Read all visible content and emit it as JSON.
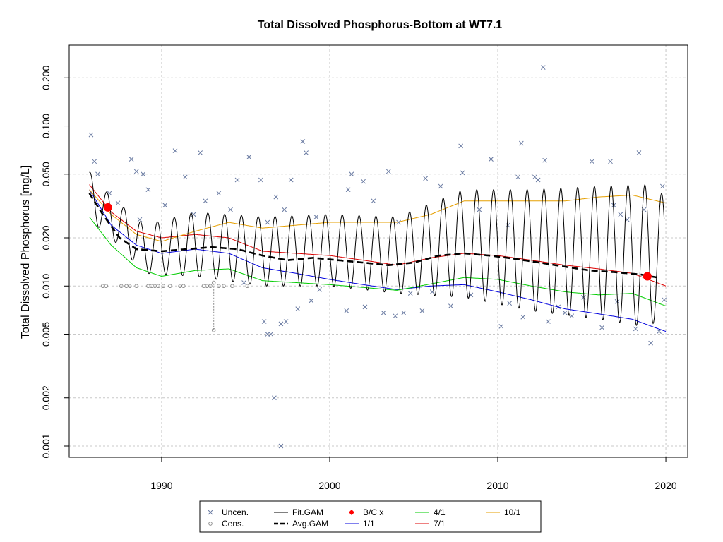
{
  "chart_data": {
    "type": "line",
    "title": "Total Dissolved Phosphorus-Bottom at WT7.1",
    "xlabel": "",
    "ylabel": "Total Dissolved Phosphorus [mg/L]",
    "y_scale": "log",
    "xlim": [
      1984.5,
      2021.3
    ],
    "ylim": [
      0.00085,
      0.32
    ],
    "grid": true,
    "x_ticks": [
      {
        "value": 1990,
        "label": "1990"
      },
      {
        "value": 2000,
        "label": "2000"
      },
      {
        "value": 2010,
        "label": "2010"
      },
      {
        "value": 2020,
        "label": "2020"
      }
    ],
    "y_ticks": [
      {
        "value": 0.001,
        "label": "0.001"
      },
      {
        "value": 0.002,
        "label": "0.002"
      },
      {
        "value": 0.005,
        "label": "0.005"
      },
      {
        "value": 0.01,
        "label": "0.010"
      },
      {
        "value": 0.02,
        "label": "0.020"
      },
      {
        "value": 0.05,
        "label": "0.050"
      },
      {
        "value": 0.1,
        "label": "0.100"
      },
      {
        "value": 0.2,
        "label": "0.200"
      }
    ],
    "fit_gam": {
      "name": "Fit.GAM",
      "color": "#000000",
      "cycle_peak_offset": 0.75,
      "control_points": [
        {
          "x": 1985.7,
          "hi": 0.052,
          "lo": 0.026
        },
        {
          "x": 1987.0,
          "hi": 0.036,
          "lo": 0.02
        },
        {
          "x": 1989.0,
          "hi": 0.024,
          "lo": 0.012
        },
        {
          "x": 1992.0,
          "hi": 0.029,
          "lo": 0.0115
        },
        {
          "x": 1996.0,
          "hi": 0.027,
          "lo": 0.01
        },
        {
          "x": 2000.0,
          "hi": 0.028,
          "lo": 0.01
        },
        {
          "x": 2004.0,
          "hi": 0.027,
          "lo": 0.009
        },
        {
          "x": 2008.0,
          "hi": 0.04,
          "lo": 0.0085
        },
        {
          "x": 2012.0,
          "hi": 0.04,
          "lo": 0.007
        },
        {
          "x": 2016.0,
          "hi": 0.042,
          "lo": 0.0062
        },
        {
          "x": 2019.0,
          "hi": 0.043,
          "lo": 0.0055
        },
        {
          "x": 2019.9,
          "hi": 0.037,
          "lo": 0.0068
        }
      ]
    },
    "series": [
      {
        "name": "Avg.GAM",
        "color": "#000000",
        "dashed": true,
        "x": [
          1985.7,
          1986.5,
          1987.5,
          1988.5,
          1990,
          1991.5,
          1993,
          1994.5,
          1996,
          1997.5,
          1999,
          2000.5,
          2002,
          2003.5,
          2005,
          2006.5,
          2008,
          2009.5,
          2011,
          2012.5,
          2014,
          2015.5,
          2017,
          2018.5,
          2019.5
        ],
        "values": [
          0.038,
          0.028,
          0.02,
          0.017,
          0.0165,
          0.017,
          0.0175,
          0.017,
          0.0155,
          0.0145,
          0.015,
          0.0145,
          0.014,
          0.0135,
          0.014,
          0.0155,
          0.016,
          0.0155,
          0.0148,
          0.014,
          0.0132,
          0.0125,
          0.0122,
          0.0118,
          0.0113
        ]
      },
      {
        "name": "1/1",
        "color": "#0000dd",
        "x": [
          1985.7,
          1987,
          1988.5,
          1990,
          1992,
          1994,
          1996,
          1998,
          2000,
          2002,
          2004,
          2006,
          2008,
          2010,
          2012,
          2014,
          2016,
          2018,
          2020
        ],
        "values": [
          0.04,
          0.024,
          0.018,
          0.016,
          0.017,
          0.016,
          0.013,
          0.012,
          0.011,
          0.0102,
          0.0095,
          0.01,
          0.0102,
          0.0092,
          0.0082,
          0.0072,
          0.0067,
          0.0062,
          0.0052
        ]
      },
      {
        "name": "4/1",
        "color": "#00cc00",
        "x": [
          1985.7,
          1987,
          1988.5,
          1990,
          1992,
          1994,
          1996,
          1998,
          2000,
          2002,
          2004,
          2006,
          2008,
          2010,
          2012,
          2014,
          2016,
          2018,
          2020
        ],
        "values": [
          0.027,
          0.018,
          0.013,
          0.0115,
          0.0125,
          0.0128,
          0.0108,
          0.0105,
          0.0102,
          0.0098,
          0.0094,
          0.0103,
          0.0113,
          0.011,
          0.01,
          0.0092,
          0.0088,
          0.009,
          0.0075
        ]
      },
      {
        "name": "7/1",
        "color": "#dd0000",
        "x": [
          1985.7,
          1987,
          1988.5,
          1990,
          1992,
          1994,
          1996,
          1998,
          2000,
          2002,
          2004,
          2006,
          2008,
          2010,
          2012,
          2014,
          2016,
          2018,
          2020
        ],
        "values": [
          0.043,
          0.029,
          0.022,
          0.02,
          0.021,
          0.02,
          0.0165,
          0.016,
          0.0155,
          0.0145,
          0.0135,
          0.015,
          0.016,
          0.0155,
          0.0145,
          0.0135,
          0.0128,
          0.012,
          0.01
        ]
      },
      {
        "name": "10/1",
        "color": "#e69f00",
        "x": [
          1985.7,
          1987,
          1988.5,
          1990,
          1992,
          1994,
          1996,
          1998,
          2000,
          2002,
          2004,
          2006,
          2008,
          2010,
          2012,
          2014,
          2016,
          2018,
          2020
        ],
        "values": [
          0.04,
          0.028,
          0.021,
          0.019,
          0.022,
          0.025,
          0.023,
          0.024,
          0.025,
          0.025,
          0.025,
          0.028,
          0.034,
          0.034,
          0.034,
          0.034,
          0.036,
          0.037,
          0.033
        ]
      }
    ],
    "bc_points": {
      "name": "B/C x",
      "color": "#ff0000",
      "points": [
        {
          "x": 1986.8,
          "y": 0.031
        },
        {
          "x": 2018.9,
          "y": 0.0115
        }
      ]
    },
    "censored": {
      "name": "Cens.",
      "color": "#888888",
      "points": [
        {
          "x": 1986.5,
          "y": 0.01
        },
        {
          "x": 1986.7,
          "y": 0.01
        },
        {
          "x": 1987.6,
          "y": 0.01
        },
        {
          "x": 1987.9,
          "y": 0.01
        },
        {
          "x": 1988.1,
          "y": 0.01
        },
        {
          "x": 1988.5,
          "y": 0.01
        },
        {
          "x": 1989.2,
          "y": 0.01
        },
        {
          "x": 1989.4,
          "y": 0.01
        },
        {
          "x": 1989.6,
          "y": 0.01
        },
        {
          "x": 1989.8,
          "y": 0.01
        },
        {
          "x": 1990.1,
          "y": 0.01
        },
        {
          "x": 1990.5,
          "y": 0.01
        },
        {
          "x": 1991.1,
          "y": 0.01
        },
        {
          "x": 1991.3,
          "y": 0.01
        },
        {
          "x": 1992.5,
          "y": 0.01
        },
        {
          "x": 1992.7,
          "y": 0.01
        },
        {
          "x": 1992.9,
          "y": 0.01
        },
        {
          "x": 1993.1,
          "y": 0.0105
        },
        {
          "x": 1993.4,
          "y": 0.01
        },
        {
          "x": 1993.7,
          "y": 0.01
        },
        {
          "x": 1994.2,
          "y": 0.01
        },
        {
          "x": 1995.1,
          "y": 0.01
        },
        {
          "x": 1993.1,
          "y": 0.0053
        }
      ],
      "range_line": {
        "x": 1993.1,
        "y_from": 0.0053,
        "y_to": 0.0105
      }
    },
    "uncensored": {
      "name": "Uncen.",
      "color": "#6a7ba2",
      "points": [
        {
          "x": 1985.8,
          "y": 0.088
        },
        {
          "x": 1986.0,
          "y": 0.06
        },
        {
          "x": 1986.2,
          "y": 0.05
        },
        {
          "x": 1986.9,
          "y": 0.038
        },
        {
          "x": 1987.4,
          "y": 0.033
        },
        {
          "x": 1988.2,
          "y": 0.062
        },
        {
          "x": 1988.5,
          "y": 0.052
        },
        {
          "x": 1988.9,
          "y": 0.05
        },
        {
          "x": 1989.2,
          "y": 0.04
        },
        {
          "x": 1988.7,
          "y": 0.026
        },
        {
          "x": 1990.2,
          "y": 0.032
        },
        {
          "x": 1990.8,
          "y": 0.07
        },
        {
          "x": 1991.4,
          "y": 0.048
        },
        {
          "x": 1991.9,
          "y": 0.028
        },
        {
          "x": 1992.3,
          "y": 0.068
        },
        {
          "x": 1992.6,
          "y": 0.034
        },
        {
          "x": 1993.4,
          "y": 0.038
        },
        {
          "x": 1994.1,
          "y": 0.03
        },
        {
          "x": 1994.5,
          "y": 0.046
        },
        {
          "x": 1995.2,
          "y": 0.064
        },
        {
          "x": 1995.9,
          "y": 0.046
        },
        {
          "x": 1996.3,
          "y": 0.025
        },
        {
          "x": 1996.8,
          "y": 0.036
        },
        {
          "x": 1997.3,
          "y": 0.03
        },
        {
          "x": 1997.7,
          "y": 0.046
        },
        {
          "x": 1998.4,
          "y": 0.08
        },
        {
          "x": 1998.6,
          "y": 0.068
        },
        {
          "x": 1999.2,
          "y": 0.027
        },
        {
          "x": 1996.1,
          "y": 0.006
        },
        {
          "x": 1996.3,
          "y": 0.005
        },
        {
          "x": 1996.5,
          "y": 0.005
        },
        {
          "x": 1996.7,
          "y": 0.002
        },
        {
          "x": 1997.1,
          "y": 0.0058
        },
        {
          "x": 1997.4,
          "y": 0.006
        },
        {
          "x": 1997.1,
          "y": 0.001
        },
        {
          "x": 1998.1,
          "y": 0.0072
        },
        {
          "x": 1998.9,
          "y": 0.0081
        },
        {
          "x": 2001.1,
          "y": 0.04
        },
        {
          "x": 2001.3,
          "y": 0.05
        },
        {
          "x": 2002.0,
          "y": 0.045
        },
        {
          "x": 2002.6,
          "y": 0.034
        },
        {
          "x": 2003.5,
          "y": 0.052
        },
        {
          "x": 2004.1,
          "y": 0.025
        },
        {
          "x": 2001.0,
          "y": 0.007
        },
        {
          "x": 2002.1,
          "y": 0.0074
        },
        {
          "x": 2003.2,
          "y": 0.0068
        },
        {
          "x": 2003.9,
          "y": 0.0065
        },
        {
          "x": 2004.4,
          "y": 0.0068
        },
        {
          "x": 2005.5,
          "y": 0.007
        },
        {
          "x": 2005.7,
          "y": 0.047
        },
        {
          "x": 2006.6,
          "y": 0.042
        },
        {
          "x": 2007.2,
          "y": 0.0075
        },
        {
          "x": 2007.8,
          "y": 0.075
        },
        {
          "x": 2007.9,
          "y": 0.051
        },
        {
          "x": 2008.9,
          "y": 0.03
        },
        {
          "x": 2009.6,
          "y": 0.062
        },
        {
          "x": 2010.2,
          "y": 0.0056
        },
        {
          "x": 2010.6,
          "y": 0.024
        },
        {
          "x": 2010.7,
          "y": 0.0078
        },
        {
          "x": 2011.2,
          "y": 0.048
        },
        {
          "x": 2011.4,
          "y": 0.078
        },
        {
          "x": 2011.5,
          "y": 0.0064
        },
        {
          "x": 2012.2,
          "y": 0.048
        },
        {
          "x": 2012.4,
          "y": 0.046
        },
        {
          "x": 2012.7,
          "y": 0.232
        },
        {
          "x": 2012.8,
          "y": 0.061
        },
        {
          "x": 2013.0,
          "y": 0.006
        },
        {
          "x": 2014.0,
          "y": 0.0068
        },
        {
          "x": 2014.4,
          "y": 0.0065
        },
        {
          "x": 2015.6,
          "y": 0.06
        },
        {
          "x": 2016.2,
          "y": 0.0055
        },
        {
          "x": 2016.7,
          "y": 0.06
        },
        {
          "x": 2016.9,
          "y": 0.032
        },
        {
          "x": 2017.3,
          "y": 0.028
        },
        {
          "x": 2017.7,
          "y": 0.026
        },
        {
          "x": 2018.2,
          "y": 0.0054
        },
        {
          "x": 2018.4,
          "y": 0.068
        },
        {
          "x": 2018.7,
          "y": 0.03
        },
        {
          "x": 2019.1,
          "y": 0.0044
        },
        {
          "x": 2019.6,
          "y": 0.0052
        },
        {
          "x": 2019.8,
          "y": 0.042
        },
        {
          "x": 2019.9,
          "y": 0.0082
        },
        {
          "x": 1999.4,
          "y": 0.0095
        },
        {
          "x": 2004.8,
          "y": 0.009
        },
        {
          "x": 2008.4,
          "y": 0.0088
        },
        {
          "x": 2013.6,
          "y": 0.0074
        },
        {
          "x": 2015.1,
          "y": 0.0085
        },
        {
          "x": 2017.1,
          "y": 0.008
        },
        {
          "x": 1994.9,
          "y": 0.0105
        },
        {
          "x": 2006.1,
          "y": 0.0092
        }
      ]
    },
    "legend": {
      "position": "bottom",
      "entries": [
        {
          "label": "Uncen.",
          "symbol": "x"
        },
        {
          "label": "Cens.",
          "symbol": "o"
        },
        {
          "label": "Fit.GAM",
          "symbol": "line"
        },
        {
          "label": "Avg.GAM",
          "symbol": "dashed"
        },
        {
          "label": "B/C x",
          "symbol": "diamond"
        },
        {
          "label": "1/1",
          "symbol": "line"
        },
        {
          "label": "4/1",
          "symbol": "line"
        },
        {
          "label": "7/1",
          "symbol": "line"
        },
        {
          "label": "10/1",
          "symbol": "line"
        }
      ]
    }
  }
}
